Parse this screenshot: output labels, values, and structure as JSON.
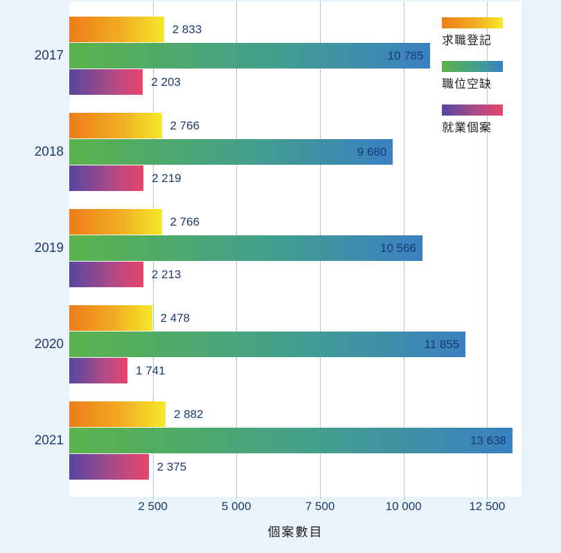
{
  "chart_data": {
    "type": "bar",
    "orientation": "horizontal",
    "xlabel": "個案數目",
    "categories": [
      "2017",
      "2018",
      "2019",
      "2020",
      "2021"
    ],
    "series": [
      {
        "name": "求職登記",
        "values": [
          2833,
          2766,
          2766,
          2478,
          2882
        ],
        "labels": [
          "2 833",
          "2 766",
          "2 766",
          "2 478",
          "2 882"
        ],
        "gradient": [
          "#ee7c1b",
          "#f0ad23",
          "#f6e829"
        ],
        "label_position": "outside"
      },
      {
        "name": "職位空缺",
        "values": [
          10785,
          9680,
          10566,
          11855,
          13638
        ],
        "labels": [
          "10 785",
          "9 680",
          "10 566",
          "11 855",
          "13 638"
        ],
        "gradient": [
          "#5ab34a",
          "#43a08b",
          "#3a80c2"
        ],
        "label_position": "inside"
      },
      {
        "name": "就業個案",
        "values": [
          2203,
          2219,
          2213,
          1741,
          2375
        ],
        "labels": [
          "2 203",
          "2 219",
          "2 213",
          "1 741",
          "2 375"
        ],
        "gradient": [
          "#5546a0",
          "#aa4a88",
          "#e8456b"
        ],
        "label_position": "outside"
      }
    ],
    "x_ticks": [
      "2 500",
      "5 000",
      "7 500",
      "10 000",
      "12 500"
    ],
    "x_tick_values": [
      2500,
      5000,
      7500,
      10000,
      12500
    ],
    "x_max": 13529,
    "grid": true,
    "legend_position": "top-right"
  },
  "colors": {
    "background": "#eaf2fa",
    "plot_background": "#ffffff",
    "gridline": "#a9bedb",
    "value_text": "#183a70",
    "year_text": "#1d3a6e",
    "legend_text": "#221f1f"
  },
  "layout": {
    "group_tops": [
      22,
      161,
      300,
      439,
      578
    ]
  }
}
